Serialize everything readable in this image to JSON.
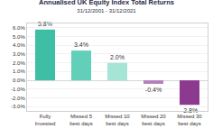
{
  "chart_data": {
    "type": "bar",
    "title": "Annualised UK Equity Index Total Returns",
    "subtitle": "31/12/2001 - 31/12/2021",
    "categories": [
      "Fully Invested",
      "Missed 5 best days",
      "Missed 10 best days",
      "Missed 20 best days",
      "Missed 30 best days"
    ],
    "values": [
      5.8,
      3.4,
      2.0,
      -0.4,
      -2.8
    ],
    "value_labels": [
      "5.8%",
      "3.4%",
      "2.0%",
      "-0.4%",
      "-2.8%"
    ],
    "colors": [
      "#3dbea5",
      "#62cfb9",
      "#a6e4d5",
      "#b47fbd",
      "#8b3a90"
    ],
    "ylim": [
      -3.5,
      6.5
    ],
    "yticks": [
      {
        "value": -3,
        "label": "-3.0%"
      },
      {
        "value": -2,
        "label": "-2.0%"
      },
      {
        "value": -1,
        "label": "-1.0%"
      },
      {
        "value": 0,
        "label": "0.0%"
      },
      {
        "value": 1,
        "label": "1.0%"
      },
      {
        "value": 2,
        "label": "2.0%"
      },
      {
        "value": 3,
        "label": "3.0%"
      },
      {
        "value": 4,
        "label": "4.0%"
      },
      {
        "value": 5,
        "label": "5.0%"
      },
      {
        "value": 6,
        "label": "6.0%"
      }
    ],
    "grid": true,
    "data_labels": true
  }
}
